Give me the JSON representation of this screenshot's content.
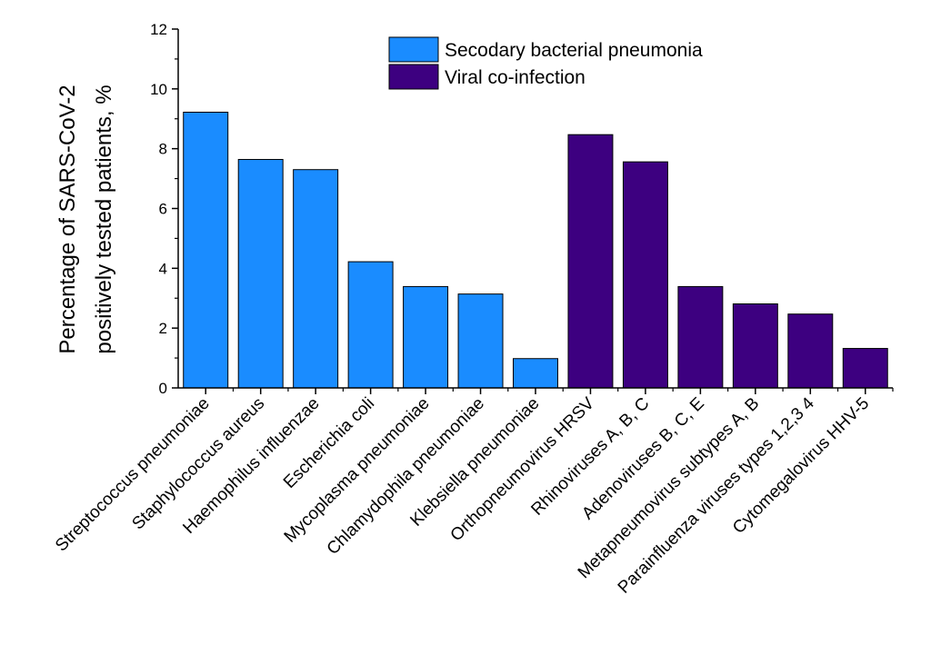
{
  "chart_data": {
    "type": "bar",
    "title": "",
    "xlabel": "",
    "ylabel": [
      "Percentage of SARS-CoV-2",
      "positively tested patients, %"
    ],
    "ylim": [
      0,
      12
    ],
    "yticks": [
      "0",
      "2",
      "4",
      "6",
      "8",
      "10",
      "12"
    ],
    "grid": false,
    "legend_position": "top-center",
    "categories": [
      "Streptococcus pneumoniae",
      "Staphylococcus aureus",
      "Haemophilus influenzae",
      "Escherichia coli",
      "Mycoplasma pneumoniae",
      "Chlamydophila pneumoniae",
      "Klebsiella pneumoniae",
      "Orthopneumovirus HRSV",
      "Rhinoviruses A, B, C",
      "Adenoviruses B, C, E",
      "Metapneumovirus subtypes A, B",
      "Parainfluenza viruses types 1,2,3 4",
      "Cytomegalovirus HHV-5"
    ],
    "values": [
      9.22,
      7.64,
      7.3,
      4.22,
      3.39,
      3.14,
      0.98,
      8.47,
      7.56,
      3.39,
      2.81,
      2.47,
      1.32
    ],
    "series_index": [
      0,
      0,
      0,
      0,
      0,
      0,
      0,
      1,
      1,
      1,
      1,
      1,
      1
    ],
    "series": [
      {
        "name": "Secodary bacterial pneumonia",
        "color": "#1a8cff"
      },
      {
        "name": "Viral co-infection",
        "color": "#3d0080"
      }
    ]
  }
}
